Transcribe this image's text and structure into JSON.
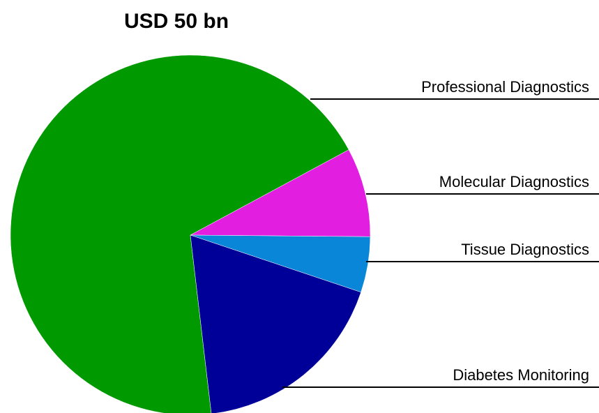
{
  "chart_data": {
    "type": "pie",
    "title": "USD 50 bn",
    "categories": [
      "Professional Diagnostics",
      "Molecular Diagnostics",
      "Tissue Diagnostics",
      "Diabetes Monitoring"
    ],
    "values": [
      69,
      8,
      5,
      18
    ],
    "colors": [
      "#009900",
      "#e21fe0",
      "#0a86d8",
      "#000099"
    ]
  }
}
